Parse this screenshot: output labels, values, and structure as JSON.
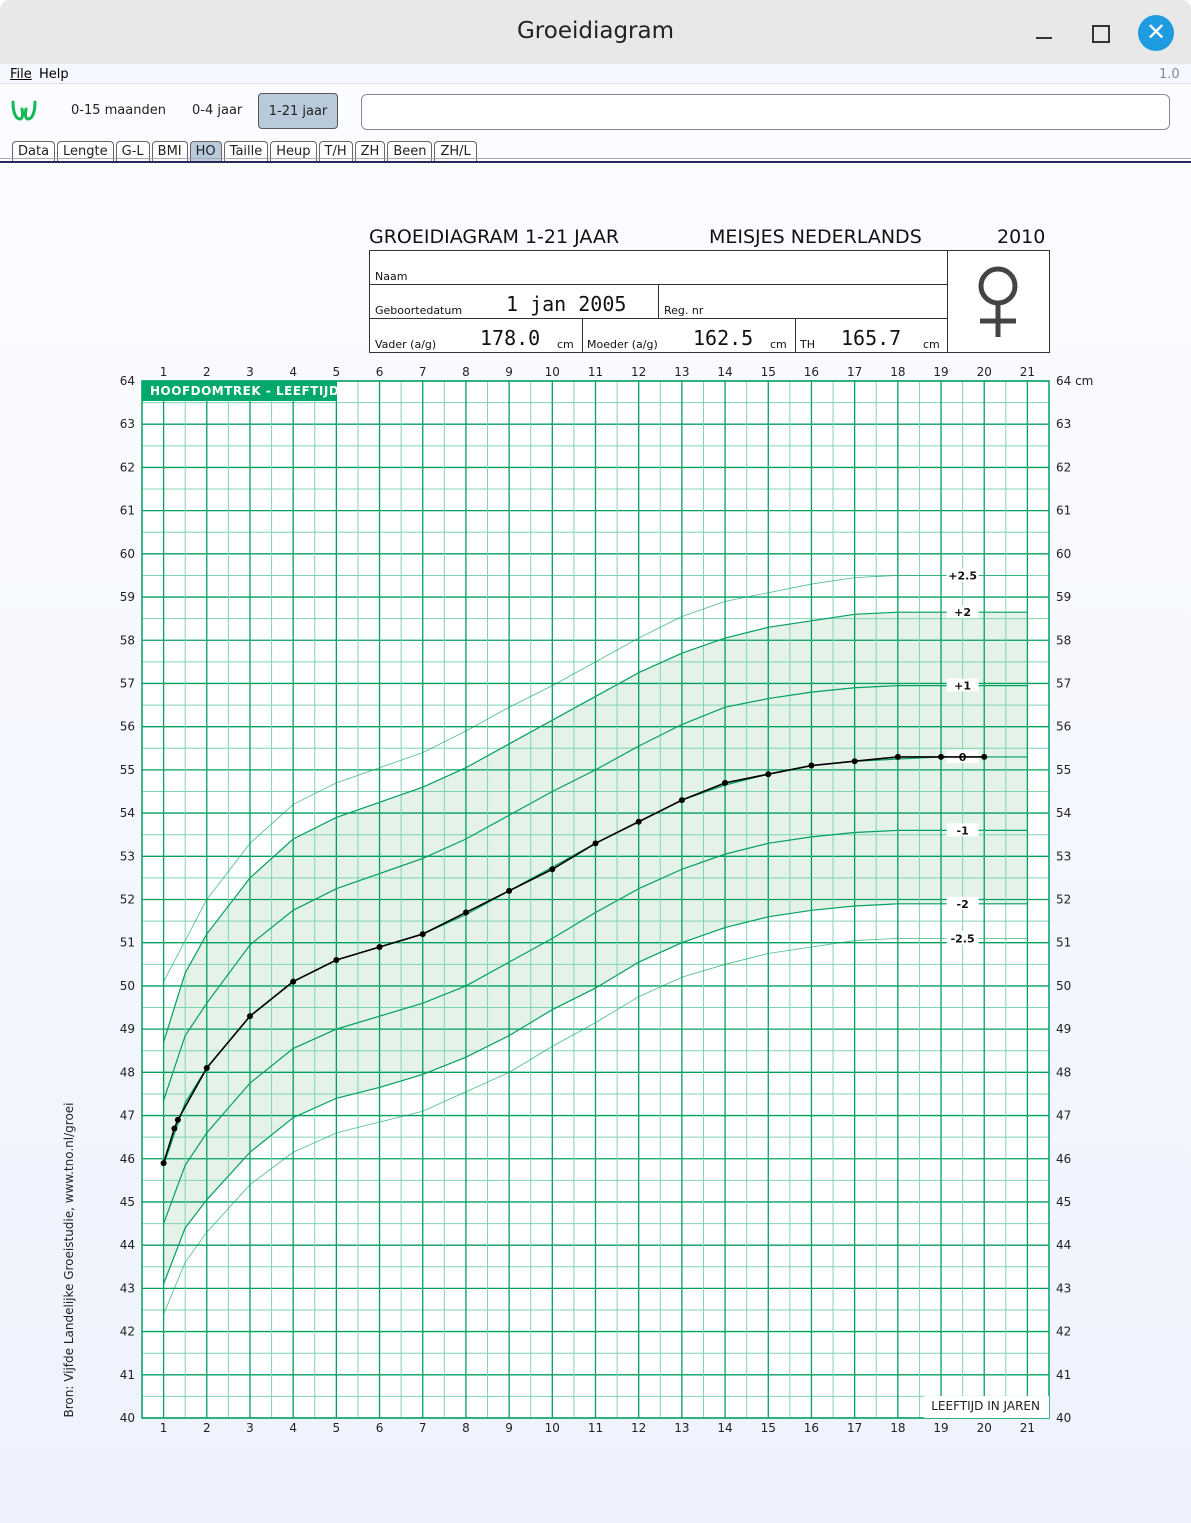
{
  "window": {
    "title": "Groeidiagram",
    "version": "1.0"
  },
  "menu": [
    "File",
    "Help"
  ],
  "toolbar": {
    "ranges": [
      "0-15 maanden",
      "0-4 jaar",
      "1-21 jaar"
    ],
    "selected_range": "1-21 jaar",
    "search_value": ""
  },
  "tabs": [
    "Data",
    "Lengte",
    "G-L",
    "BMI",
    "HO",
    "Taille",
    "Heup",
    "T/H",
    "ZH",
    "Been",
    "ZH/L"
  ],
  "selected_tab": "HO",
  "form": {
    "title": "GROEIDIAGRAM 1-21 JAAR",
    "group": "MEISJES  NEDERLANDS",
    "year": "2010",
    "naam_label": "Naam",
    "naam": "",
    "geboortedatum_label": "Geboortedatum",
    "geboortedatum": "1 jan 2005",
    "regnr_label": "Reg. nr",
    "vader_label": "Vader (a/g)",
    "vader": "178.0",
    "moeder_label": "Moeder (a/g)",
    "moeder": "162.5",
    "th_label": "TH",
    "th": "165.7",
    "unit": "cm",
    "sex_icon": "female-symbol"
  },
  "source": "Bron: Vijfde Landelijke Groeistudie, www.tno.nl/groei",
  "colors": {
    "grid_major": "#00a060",
    "grid_minor": "#7fd4b0",
    "band": "#e4f2e8",
    "curve": "#00a060",
    "measure": "#000000",
    "title_bg": "#00a86b"
  },
  "chart_data": {
    "type": "line",
    "title": "HOOFDOMTREK - LEEFTIJD",
    "xlabel": "LEEFTIJD IN JAREN",
    "yunit": "cm",
    "xlim": [
      0.5,
      21.5
    ],
    "ylim": [
      40,
      64
    ],
    "xticks": [
      1,
      2,
      3,
      4,
      5,
      6,
      7,
      8,
      9,
      10,
      11,
      12,
      13,
      14,
      15,
      16,
      17,
      18,
      19,
      20,
      21
    ],
    "yticks": [
      40,
      41,
      42,
      43,
      44,
      45,
      46,
      47,
      48,
      49,
      50,
      51,
      52,
      53,
      54,
      55,
      56,
      57,
      58,
      59,
      60,
      61,
      62,
      63,
      64
    ],
    "grid": true,
    "reference_ages": [
      1,
      1.5,
      2,
      3,
      4,
      5,
      6,
      7,
      8,
      9,
      10,
      11,
      12,
      13,
      14,
      15,
      16,
      17,
      18,
      19,
      20,
      21
    ],
    "reference_curves": [
      {
        "name": "+2.5",
        "values": [
          50.1,
          51.05,
          52.0,
          53.3,
          54.2,
          54.7,
          55.05,
          55.4,
          55.9,
          56.45,
          56.95,
          57.5,
          58.05,
          58.55,
          58.9,
          59.1,
          59.3,
          59.45,
          59.5,
          59.5,
          59.5,
          59.5
        ]
      },
      {
        "name": "+2",
        "values": [
          48.7,
          50.3,
          51.2,
          52.5,
          53.4,
          53.9,
          54.25,
          54.6,
          55.05,
          55.6,
          56.15,
          56.7,
          57.25,
          57.7,
          58.05,
          58.3,
          58.45,
          58.6,
          58.65,
          58.65,
          58.65,
          58.65
        ]
      },
      {
        "name": "+1",
        "values": [
          47.35,
          48.85,
          49.6,
          50.95,
          51.75,
          52.25,
          52.6,
          52.95,
          53.4,
          53.95,
          54.5,
          55.0,
          55.55,
          56.05,
          56.45,
          56.65,
          56.8,
          56.9,
          56.95,
          56.95,
          56.95,
          56.95
        ]
      },
      {
        "name": "0",
        "values": [
          45.85,
          47.3,
          48.1,
          49.3,
          50.1,
          50.6,
          50.9,
          51.2,
          51.65,
          52.2,
          52.75,
          53.3,
          53.8,
          54.3,
          54.65,
          54.9,
          55.1,
          55.2,
          55.25,
          55.3,
          55.3,
          55.3
        ]
      },
      {
        "name": "-1",
        "values": [
          44.5,
          45.85,
          46.6,
          47.75,
          48.55,
          49.0,
          49.3,
          49.6,
          50.0,
          50.55,
          51.1,
          51.7,
          52.25,
          52.7,
          53.05,
          53.3,
          53.45,
          53.55,
          53.6,
          53.6,
          53.6,
          53.6
        ]
      },
      {
        "name": "-2",
        "values": [
          43.1,
          44.4,
          45.05,
          46.15,
          46.95,
          47.4,
          47.65,
          47.95,
          48.35,
          48.85,
          49.45,
          49.95,
          50.55,
          51.0,
          51.35,
          51.6,
          51.75,
          51.85,
          51.9,
          51.9,
          51.9,
          51.9
        ]
      },
      {
        "name": "-2.5",
        "values": [
          42.4,
          43.6,
          44.3,
          45.4,
          46.15,
          46.6,
          46.85,
          47.1,
          47.55,
          48.0,
          48.6,
          49.15,
          49.75,
          50.2,
          50.5,
          50.75,
          50.9,
          51.05,
          51.1,
          51.1,
          51.1,
          51.1
        ]
      }
    ],
    "shaded_band": [
      "-2",
      "+2"
    ],
    "measurements": {
      "age": [
        1,
        1.25,
        1.33,
        2,
        3,
        4,
        5,
        6,
        7,
        8,
        9,
        10,
        11,
        12,
        13,
        14,
        15,
        16,
        17,
        18,
        19,
        20
      ],
      "cm": [
        45.9,
        46.7,
        46.9,
        48.1,
        49.3,
        50.1,
        50.6,
        50.9,
        51.2,
        51.7,
        52.2,
        52.7,
        53.3,
        53.8,
        54.3,
        54.7,
        54.9,
        55.1,
        55.2,
        55.3,
        55.3,
        55.3
      ]
    }
  }
}
